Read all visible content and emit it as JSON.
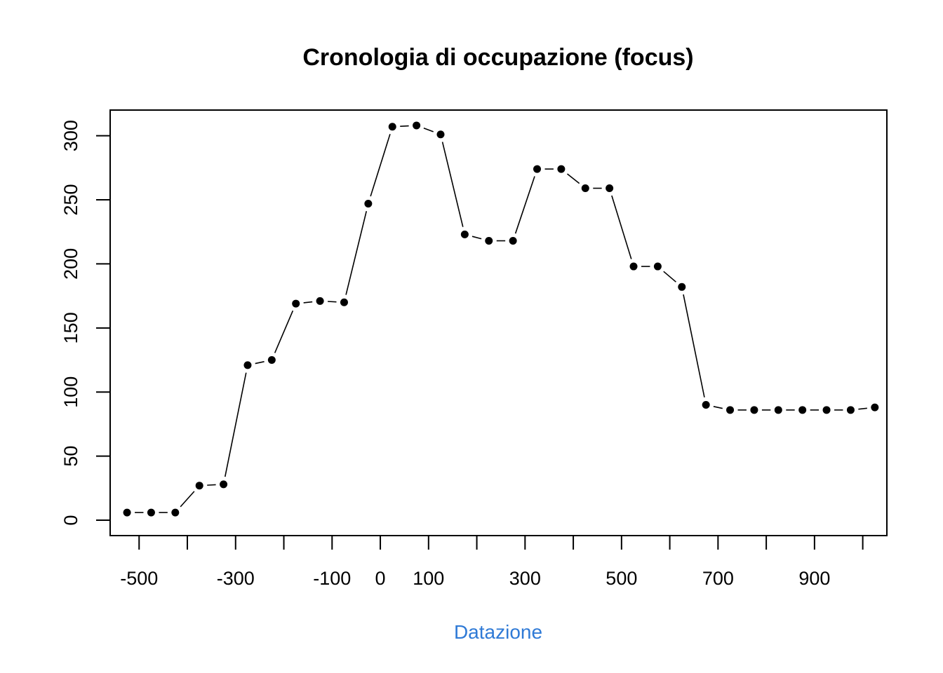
{
  "chart_data": {
    "type": "line",
    "style": "b",
    "title": "Cronologia di occupazione (focus)",
    "xlabel": "Datazione",
    "ylabel": "",
    "xlabel_color": "#2f7ad6",
    "xlim": [
      -560,
      1050
    ],
    "ylim": [
      -12,
      320
    ],
    "x_ticks": [
      -500,
      -400,
      -300,
      -200,
      -100,
      0,
      100,
      200,
      300,
      400,
      500,
      600,
      700,
      800,
      900,
      1000
    ],
    "x_tick_labels": [
      {
        "value": -500,
        "label": "-500"
      },
      {
        "value": -300,
        "label": "-300"
      },
      {
        "value": -100,
        "label": "-100"
      },
      {
        "value": 0,
        "label": "0"
      },
      {
        "value": 100,
        "label": "100"
      },
      {
        "value": 300,
        "label": "300"
      },
      {
        "value": 500,
        "label": "500"
      },
      {
        "value": 700,
        "label": "700"
      },
      {
        "value": 900,
        "label": "900"
      }
    ],
    "y_ticks": [
      0,
      50,
      100,
      150,
      200,
      250,
      300
    ],
    "y_tick_labels": [
      "0",
      "50",
      "100",
      "150",
      "200",
      "250",
      "300"
    ],
    "grid": false,
    "series": [
      {
        "x": [
          -525,
          -475,
          -425,
          -375,
          -325,
          -275,
          -225,
          -175,
          -125,
          -75,
          -25,
          25,
          75,
          125,
          175,
          225,
          275,
          325,
          375,
          425,
          475,
          525,
          575,
          625,
          675,
          725,
          775,
          825,
          875,
          925,
          975,
          1025
        ],
        "y": [
          6,
          6,
          6,
          27,
          28,
          121,
          125,
          169,
          171,
          170,
          247,
          307,
          308,
          301,
          223,
          218,
          218,
          274,
          274,
          259,
          259,
          198,
          198,
          182,
          90,
          86,
          86,
          86,
          86,
          86,
          86,
          88
        ]
      }
    ]
  }
}
